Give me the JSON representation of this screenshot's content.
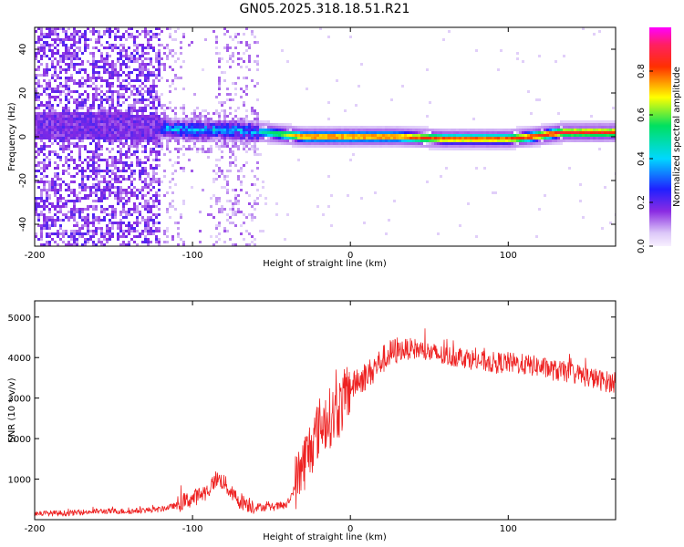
{
  "title": "GN05.2025.318.18.51.R21",
  "chart_data": [
    {
      "type": "heatmap",
      "xlabel": "Height of straight line (km)",
      "ylabel": "Frequency (Hz)",
      "xlim": [
        -200,
        168
      ],
      "ylim": [
        -50,
        50
      ],
      "xticks": [
        -200,
        -100,
        0,
        100
      ],
      "yticks": [
        -40,
        -20,
        0,
        20,
        40
      ],
      "colorbar": {
        "label": "Normalized spectral amplitude",
        "range": [
          0,
          1
        ],
        "ticks": [
          "0.0",
          "0.2",
          "0.4",
          "0.6",
          "0.8"
        ],
        "tick_values": [
          0.0,
          0.2,
          0.4,
          0.6,
          0.8
        ],
        "colormap": "rainbow (purple-blue-cyan-green-yellow-red-magenta)"
      },
      "ridge": [
        {
          "x": -200,
          "f": 5,
          "amp": 0.1
        },
        {
          "x": -150,
          "f": 5,
          "amp": 0.12
        },
        {
          "x": -100,
          "f": 3,
          "amp": 0.3
        },
        {
          "x": -75,
          "f": 3,
          "amp": 0.35
        },
        {
          "x": -55,
          "f": 2,
          "amp": 0.5
        },
        {
          "x": -30,
          "f": 0,
          "amp": 0.85
        },
        {
          "x": 0,
          "f": 0,
          "amp": 0.85
        },
        {
          "x": 30,
          "f": 0,
          "amp": 0.85
        },
        {
          "x": 60,
          "f": -1,
          "amp": 0.85
        },
        {
          "x": 100,
          "f": -1,
          "amp": 0.85
        },
        {
          "x": 115,
          "f": 0,
          "amp": 0.9
        },
        {
          "x": 135,
          "f": 2,
          "amp": 0.9
        },
        {
          "x": 168,
          "f": 2,
          "amp": 0.9
        }
      ]
    },
    {
      "type": "line",
      "color": "#ee2222",
      "xlabel": "Height of straight line (km)",
      "ylabel": "SNR (10 * v/v)",
      "xlim": [
        -200,
        168
      ],
      "ylim": [
        0,
        5400
      ],
      "xticks": [
        -200,
        -100,
        0,
        100
      ],
      "yticks": [
        1000,
        2000,
        3000,
        4000,
        5000
      ],
      "series": [
        {
          "name": "SNR",
          "x": [
            -200,
            -180,
            -160,
            -140,
            -120,
            -110,
            -100,
            -90,
            -85,
            -80,
            -75,
            -70,
            -60,
            -50,
            -40,
            -35,
            -30,
            -25,
            -20,
            -15,
            -10,
            -5,
            0,
            5,
            10,
            15,
            20,
            25,
            30,
            40,
            50,
            60,
            70,
            80,
            90,
            100,
            110,
            120,
            130,
            140,
            150,
            160,
            168
          ],
          "y": [
            150,
            150,
            200,
            200,
            250,
            350,
            500,
            700,
            1000,
            900,
            600,
            450,
            300,
            300,
            350,
            800,
            1300,
            1700,
            2200,
            2400,
            2500,
            2800,
            3200,
            3400,
            3500,
            3700,
            3900,
            4050,
            4150,
            4200,
            4100,
            4000,
            4000,
            3900,
            3850,
            3850,
            3800,
            3750,
            3650,
            3600,
            3500,
            3400,
            3350
          ]
        }
      ]
    }
  ]
}
